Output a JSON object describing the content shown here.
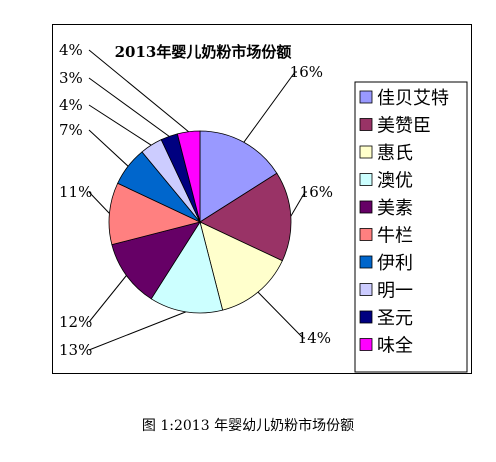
{
  "chart_data": {
    "type": "pie",
    "title": "2013年婴儿奶粉市场份额",
    "categories": [
      "佳贝艾特",
      "美赞臣",
      "惠氏",
      "澳优",
      "美素",
      "牛栏",
      "伊利",
      "明一",
      "圣元",
      "味全"
    ],
    "values": [
      16,
      16,
      14,
      13,
      12,
      11,
      7,
      4,
      3,
      4
    ],
    "value_labels": [
      "16%",
      "16%",
      "14%",
      "13%",
      "12%",
      "11%",
      "7%",
      "4%",
      "3%",
      "4%"
    ],
    "colors": [
      "#9999ff",
      "#993366",
      "#ffffcc",
      "#ccffff",
      "#660066",
      "#ff8080",
      "#0066cc",
      "#ccccff",
      "#000080",
      "#ff00ff"
    ],
    "legend_position": "right"
  },
  "caption": "图 1:2013 年婴幼儿奶粉市场份额"
}
